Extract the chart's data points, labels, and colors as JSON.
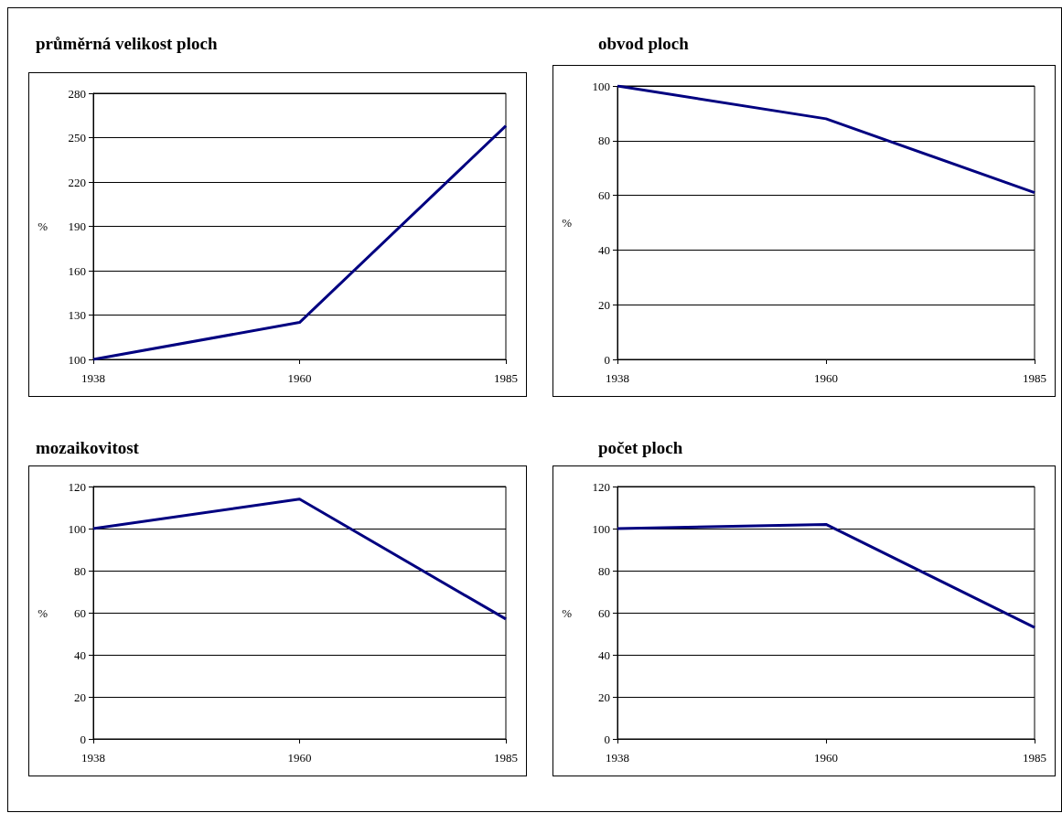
{
  "chart_data": [
    {
      "type": "line",
      "title": "průměrná velikost ploch",
      "ylabel": "%",
      "categories": [
        "1938",
        "1960",
        "1985"
      ],
      "color": "#000080",
      "values": [
        100,
        125,
        258
      ],
      "ylim": [
        100,
        280
      ],
      "yticks": [
        100,
        130,
        160,
        190,
        220,
        250,
        280
      ],
      "grid": "y",
      "marker": "none"
    },
    {
      "type": "line",
      "title": "obvod ploch",
      "ylabel": "%",
      "categories": [
        "1938",
        "1960",
        "1985"
      ],
      "color": "#000080",
      "values": [
        100,
        88,
        61
      ],
      "ylim": [
        0,
        100
      ],
      "yticks": [
        0,
        20,
        40,
        60,
        80,
        100
      ],
      "grid": "y",
      "marker": "none"
    },
    {
      "type": "line",
      "title": "mozaikovitost",
      "ylabel": "%",
      "categories": [
        "1938",
        "1960",
        "1985"
      ],
      "color": "#000080",
      "values": [
        100,
        114,
        57
      ],
      "ylim": [
        0,
        120
      ],
      "yticks": [
        0,
        20,
        40,
        60,
        80,
        100,
        120
      ],
      "grid": "y",
      "marker": "none"
    },
    {
      "type": "line",
      "title": "počet ploch",
      "ylabel": "%",
      "categories": [
        "1938",
        "1960",
        "1985"
      ],
      "color": "#000080",
      "values": [
        100,
        102,
        53
      ],
      "ylim": [
        0,
        120
      ],
      "yticks": [
        0,
        20,
        40,
        60,
        80,
        100,
        120
      ],
      "grid": "y",
      "marker": "none"
    }
  ]
}
